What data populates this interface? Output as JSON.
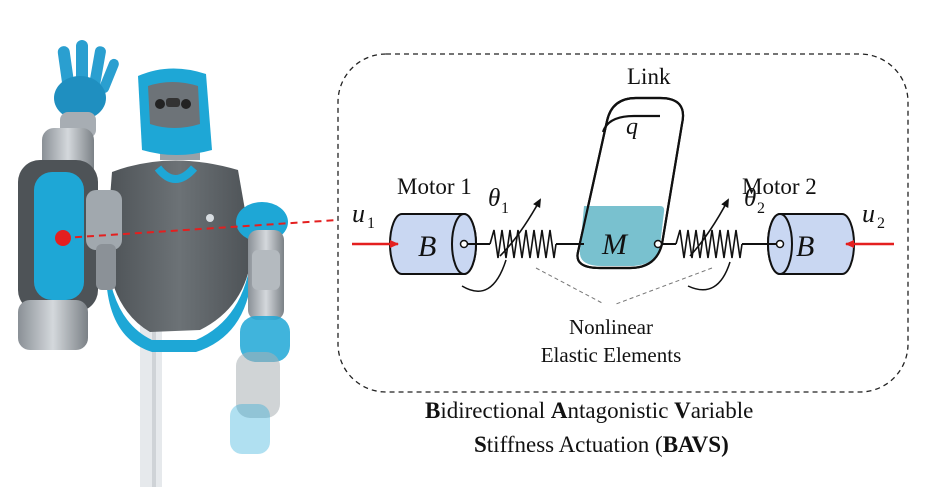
{
  "diagram": {
    "link_label": "Link",
    "link_var": "q",
    "mass_label": "M",
    "motor1": {
      "title": "Motor 1",
      "block": "B",
      "input": "u",
      "input_sub": "1",
      "angle": "θ",
      "angle_sub": "1"
    },
    "motor2": {
      "title": "Motor 2",
      "block": "B",
      "input": "u",
      "input_sub": "2",
      "angle": "θ",
      "angle_sub": "2"
    },
    "elastic_line1": "Nonlinear",
    "elastic_line2": "Elastic Elements"
  },
  "caption": {
    "line1": [
      {
        "b": "B",
        "t": "idirectional "
      },
      {
        "b": "A",
        "t": "ntagonistic "
      },
      {
        "b": "V",
        "t": "ariable"
      }
    ],
    "line2_b": "S",
    "line2_t": "tiffness Actuation (",
    "line2_acr": "BAVS",
    "line2_end": ")"
  },
  "colors": {
    "motor_fill": "#c9d7f2",
    "mass_fill": "#79c1cf",
    "robot_accent": "#1ea7d6",
    "robot_body": "#5f6468",
    "pointer": "#e41f1f"
  }
}
